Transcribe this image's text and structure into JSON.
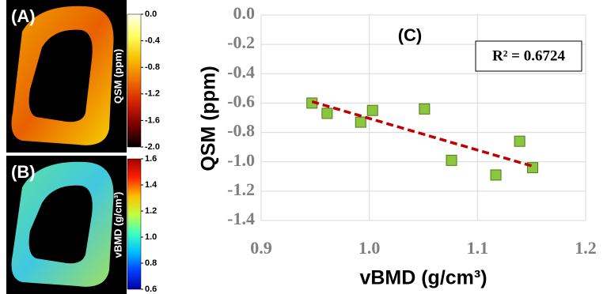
{
  "chart_data": [
    {
      "type": "image",
      "panel_label": "(A)",
      "colorbar_label": "QSM (ppm)",
      "colormap": [
        "#000000",
        "#7a0000",
        "#d42000",
        "#f07000",
        "#f8c000",
        "#ffff60",
        "#fffff0"
      ],
      "clim": [
        -2,
        0
      ],
      "cticks": [
        {
          "value": 0,
          "label": "0.0"
        },
        -0.4,
        -0.8,
        -1.2,
        -1.6,
        {
          "value": -2,
          "label": "-2.0"
        }
      ],
      "ring_colors": [
        "#f0a000",
        "#e86000",
        "#f8d000"
      ]
    },
    {
      "type": "image",
      "panel_label": "(B)",
      "colorbar_label": "vBMD (g/cm³)",
      "colormap": [
        "#0000a0",
        "#0040ff",
        "#00c0ff",
        "#40ffc0",
        "#c0ff40",
        "#ffc000",
        "#ff2000",
        "#a00000"
      ],
      "clim": [
        0.6,
        1.6
      ],
      "cticks": [
        1.6,
        1.4,
        1.2,
        {
          "value": 1,
          "label": "1.0"
        },
        0.8,
        0.6
      ],
      "ring_colors": [
        "#60e0a0",
        "#40c8e0",
        "#a0e060"
      ]
    },
    {
      "type": "scatter",
      "panel_label": "(C)",
      "annotation": "R² = 0.6724",
      "x_label": "vBMD (g/cm³)",
      "y_label": "QSM (ppm)",
      "x": [
        0.947,
        0.961,
        0.992,
        1.003,
        1.051,
        1.076,
        1.117,
        1.139,
        1.151
      ],
      "y": [
        -0.6,
        -0.67,
        -0.73,
        -0.65,
        -0.64,
        -0.99,
        -1.09,
        -0.86,
        -1.04
      ],
      "color": "#8cc63f",
      "trendline": {
        "x": [
          0.947,
          1.151
        ],
        "y": [
          -0.59,
          -1.03
        ],
        "color": "#c00000"
      },
      "xlim": [
        0.9,
        1.2
      ],
      "xticks": [
        0.9,
        {
          "value": 1,
          "label": "1.0"
        },
        1.1,
        1.2
      ],
      "ylim": [
        -1.4,
        0
      ],
      "yticks": [
        {
          "value": 0,
          "label": "0.0"
        },
        -0.2,
        -0.4,
        -0.6,
        -0.8,
        {
          "value": -1,
          "label": "-1.0"
        },
        -1.2,
        -1.4
      ],
      "grid": true
    }
  ]
}
